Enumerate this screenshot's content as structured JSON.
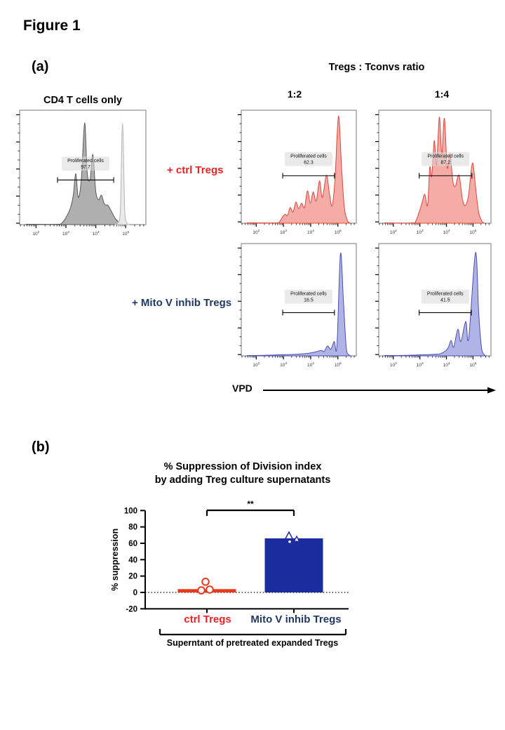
{
  "figure_title": "Figure 1",
  "panel_a": {
    "label": "(a)",
    "control_plot_title": "CD4 T cells only",
    "group_header": "Tregs : Tconvs ratio",
    "ratio_left": "1:2",
    "ratio_right": "1:4",
    "row_label_ctrl": "+ ctrl Tregs",
    "row_label_mito": "+ Mito V inhib Tregs",
    "axis_arrow_label": "VPD"
  },
  "panel_b": {
    "label": "(b)",
    "title_line1": "% Suppression of Division index",
    "title_line2": "by adding Treg culture supernatants"
  },
  "colors": {
    "red_text": "#EC2127",
    "navy_text": "#1F3864",
    "red_bar": "#E8391F",
    "navy_bar": "#1B2C9E",
    "gray": {
      "stroke": "#575757",
      "fill": "#ABABAB"
    },
    "lightgray": {
      "stroke": "#B3B3B3",
      "fill": "#E9E9E9"
    },
    "red": {
      "stroke": "#D9473C",
      "fill": "#F5A8A1"
    },
    "blue": {
      "stroke": "#4A4FB2",
      "fill": "#ACAFE4"
    }
  },
  "chart_data": [
    {
      "type": "area",
      "subtype": "flow-cytometry-histograms",
      "x_scale": "log10",
      "x_tick_exponents": [
        2,
        3,
        4,
        5
      ],
      "xlabel": "VPD",
      "gate_label": "Proliferated cells",
      "plots": [
        {
          "id": "cd4-only",
          "title": "CD4 T cells only",
          "gate_value": "97.7",
          "gate": {
            "x1": 0.3,
            "x2": 0.745,
            "y": 0.61,
            "label_y": 0.455
          },
          "curves": [
            {
              "color": "gray",
              "points": [
                [
                  0.05,
                  0.003
                ],
                [
                  0.3,
                  0.003
                ],
                [
                  0.33,
                  0.01
                ],
                [
                  0.36,
                  0.05
                ],
                [
                  0.4,
                  0.14
                ],
                [
                  0.425,
                  0.26
                ],
                [
                  0.445,
                  0.45
                ],
                [
                  0.465,
                  0.24
                ],
                [
                  0.49,
                  0.42
                ],
                [
                  0.515,
                  0.9
                ],
                [
                  0.535,
                  0.46
                ],
                [
                  0.558,
                  0.4
                ],
                [
                  0.58,
                  0.62
                ],
                [
                  0.602,
                  0.3
                ],
                [
                  0.625,
                  0.22
                ],
                [
                  0.648,
                  0.26
                ],
                [
                  0.672,
                  0.18
                ],
                [
                  0.7,
                  0.17
                ],
                [
                  0.73,
                  0.11
                ],
                [
                  0.76,
                  0.05
                ],
                [
                  0.79,
                  0.02
                ],
                [
                  0.82,
                  0.005
                ],
                [
                  0.84,
                  0
                ]
              ]
            },
            {
              "color": "lightgray",
              "points": [
                [
                  0.755,
                  0
                ],
                [
                  0.78,
                  0.02
                ],
                [
                  0.798,
                  0.14
                ],
                [
                  0.815,
                  0.9
                ],
                [
                  0.832,
                  0.14
                ],
                [
                  0.848,
                  0.02
                ],
                [
                  0.862,
                  0
                ]
              ]
            }
          ]
        },
        {
          "id": "ctrl-1-2",
          "ratio": "1:2",
          "row": "+ ctrl Tregs",
          "gate_value": "62.3",
          "gate": {
            "x1": 0.36,
            "x2": 0.81,
            "y": 0.58,
            "label_y": 0.42
          },
          "curves": [
            {
              "color": "red",
              "points": [
                [
                  0.05,
                  0.003
                ],
                [
                  0.3,
                  0.003
                ],
                [
                  0.33,
                  0.01
                ],
                [
                  0.355,
                  0.05
                ],
                [
                  0.38,
                  0.08
                ],
                [
                  0.402,
                  0.07
                ],
                [
                  0.425,
                  0.14
                ],
                [
                  0.45,
                  0.1
                ],
                [
                  0.475,
                  0.19
                ],
                [
                  0.5,
                  0.13
                ],
                [
                  0.525,
                  0.18
                ],
                [
                  0.55,
                  0.14
                ],
                [
                  0.575,
                  0.29
                ],
                [
                  0.6,
                  0.18
                ],
                [
                  0.625,
                  0.28
                ],
                [
                  0.652,
                  0.2
                ],
                [
                  0.68,
                  0.38
                ],
                [
                  0.705,
                  0.23
                ],
                [
                  0.74,
                  0.43
                ],
                [
                  0.768,
                  0.25
                ],
                [
                  0.79,
                  0.16
                ],
                [
                  0.815,
                  0.4
                ],
                [
                  0.845,
                  0.96
                ],
                [
                  0.872,
                  0.5
                ],
                [
                  0.895,
                  0.15
                ],
                [
                  0.92,
                  0.03
                ],
                [
                  0.945,
                  0
                ]
              ]
            }
          ]
        },
        {
          "id": "ctrl-1-4",
          "ratio": "1:4",
          "row": "+ ctrl Tregs",
          "gate_value": "87.2",
          "gate": {
            "x1": 0.36,
            "x2": 0.83,
            "y": 0.58,
            "label_y": 0.42
          },
          "curves": [
            {
              "color": "red",
              "points": [
                [
                  0.05,
                  0.003
                ],
                [
                  0.3,
                  0.003
                ],
                [
                  0.33,
                  0.02
                ],
                [
                  0.36,
                  0.1
                ],
                [
                  0.385,
                  0.18
                ],
                [
                  0.41,
                  0.26
                ],
                [
                  0.435,
                  0.16
                ],
                [
                  0.455,
                  0.5
                ],
                [
                  0.472,
                  0.42
                ],
                [
                  0.495,
                  0.74
                ],
                [
                  0.515,
                  0.52
                ],
                [
                  0.54,
                  0.95
                ],
                [
                  0.562,
                  0.62
                ],
                [
                  0.585,
                  0.94
                ],
                [
                  0.61,
                  0.5
                ],
                [
                  0.635,
                  0.62
                ],
                [
                  0.66,
                  0.38
                ],
                [
                  0.682,
                  0.33
                ],
                [
                  0.715,
                  0.43
                ],
                [
                  0.745,
                  0.22
                ],
                [
                  0.77,
                  0.16
                ],
                [
                  0.8,
                  0.25
                ],
                [
                  0.835,
                  0.54
                ],
                [
                  0.865,
                  0.3
                ],
                [
                  0.89,
                  0.1
                ],
                [
                  0.918,
                  0.02
                ],
                [
                  0.94,
                  0
                ]
              ]
            }
          ]
        },
        {
          "id": "mito-1-2",
          "ratio": "1:2",
          "row": "+ Mito V inhib Tregs",
          "gate_value": "16.5",
          "gate": {
            "x1": 0.36,
            "x2": 0.81,
            "y": 0.615,
            "label_y": 0.46
          },
          "curves": [
            {
              "color": "blue",
              "points": [
                [
                  0.05,
                  0.003
                ],
                [
                  0.2,
                  0.005
                ],
                [
                  0.35,
                  0.01
                ],
                [
                  0.48,
                  0.015
                ],
                [
                  0.56,
                  0.02
                ],
                [
                  0.62,
                  0.03
                ],
                [
                  0.66,
                  0.04
                ],
                [
                  0.695,
                  0.05
                ],
                [
                  0.72,
                  0.04
                ],
                [
                  0.75,
                  0.09
                ],
                [
                  0.778,
                  0.06
                ],
                [
                  0.808,
                  0.13
                ],
                [
                  0.832,
                  0.09
                ],
                [
                  0.862,
                  0.92
                ],
                [
                  0.888,
                  0.5
                ],
                [
                  0.912,
                  0.08
                ],
                [
                  0.935,
                  0.01
                ],
                [
                  0.955,
                  0
                ]
              ]
            }
          ]
        },
        {
          "id": "mito-1-4",
          "ratio": "1:4",
          "row": "+ Mito V inhib Tregs",
          "gate_value": "41.5",
          "gate": {
            "x1": 0.36,
            "x2": 0.825,
            "y": 0.615,
            "label_y": 0.46
          },
          "curves": [
            {
              "color": "blue",
              "points": [
                [
                  0.05,
                  0.003
                ],
                [
                  0.25,
                  0.005
                ],
                [
                  0.4,
                  0.01
                ],
                [
                  0.5,
                  0.015
                ],
                [
                  0.55,
                  0.02
                ],
                [
                  0.6,
                  0.05
                ],
                [
                  0.622,
                  0.08
                ],
                [
                  0.645,
                  0.14
                ],
                [
                  0.668,
                  0.08
                ],
                [
                  0.705,
                  0.24
                ],
                [
                  0.732,
                  0.13
                ],
                [
                  0.775,
                  0.31
                ],
                [
                  0.802,
                  0.16
                ],
                [
                  0.862,
                  0.93
                ],
                [
                  0.89,
                  0.4
                ],
                [
                  0.915,
                  0.08
                ],
                [
                  0.94,
                  0.01
                ],
                [
                  0.958,
                  0
                ]
              ]
            }
          ]
        }
      ]
    },
    {
      "type": "bar",
      "title": "% Suppression of Division index by adding Treg culture supernatants",
      "categories": [
        "ctrl Tregs",
        "Mito V inhib Tregs"
      ],
      "values": [
        4,
        66
      ],
      "points": [
        [
          {
            "v": 2.5,
            "dx": -8,
            "shape": "circle"
          },
          {
            "v": 13,
            "dx": -2,
            "shape": "circle"
          },
          {
            "v": 3.5,
            "dx": 4,
            "shape": "circle"
          }
        ],
        [
          {
            "v": 69,
            "dx": -7,
            "shape": "triangle"
          },
          {
            "v": 65,
            "dx": 4,
            "shape": "triangle-small"
          },
          {
            "v": 62,
            "dx": -6,
            "shape": "dot"
          }
        ]
      ],
      "ylabel": "% suppression",
      "ylim": [
        -20,
        100
      ],
      "yticks": [
        -20,
        0,
        20,
        40,
        60,
        80,
        100
      ],
      "zero_line": "dotted",
      "significance": "**",
      "group_label": "Superntant of pretreated expanded Tregs"
    }
  ]
}
